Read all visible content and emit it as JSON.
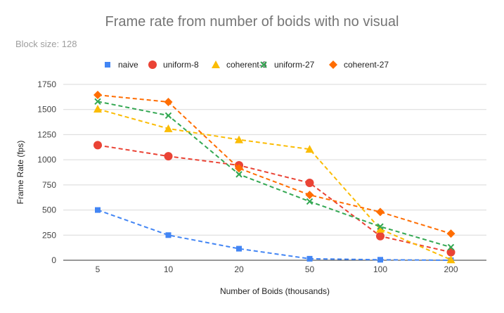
{
  "chart_data": {
    "type": "line",
    "title": "Frame rate from number of boids with no visual",
    "subtitle": "Block size: 128",
    "xlabel": "Number of Boids (thousands)",
    "ylabel": "Frame Rate (fps)",
    "categories": [
      "5",
      "10",
      "20",
      "50",
      "100",
      "200"
    ],
    "yticks": [
      "0",
      "250",
      "500",
      "750",
      "1000",
      "1250",
      "1500",
      "1750"
    ],
    "ylim": [
      0,
      1750
    ],
    "grid": true,
    "legend_position": "top",
    "line_style": "dashed",
    "series": [
      {
        "name": "naive",
        "marker": "square",
        "color": "#4285f4",
        "values": [
          500,
          250,
          115,
          15,
          5,
          0
        ]
      },
      {
        "name": "uniform-8",
        "marker": "circle",
        "color": "#ea4335",
        "values": [
          1145,
          1035,
          945,
          770,
          240,
          80
        ]
      },
      {
        "name": "coherent-8",
        "marker": "triangle",
        "color": "#fbbc04",
        "values": [
          1505,
          1310,
          1200,
          1105,
          310,
          5
        ]
      },
      {
        "name": "uniform-27",
        "marker": "x",
        "color": "#34a853",
        "values": [
          1580,
          1440,
          855,
          585,
          335,
          130
        ]
      },
      {
        "name": "coherent-27",
        "marker": "diamond",
        "color": "#ff6d01",
        "values": [
          1645,
          1575,
          915,
          650,
          480,
          265
        ]
      }
    ]
  }
}
